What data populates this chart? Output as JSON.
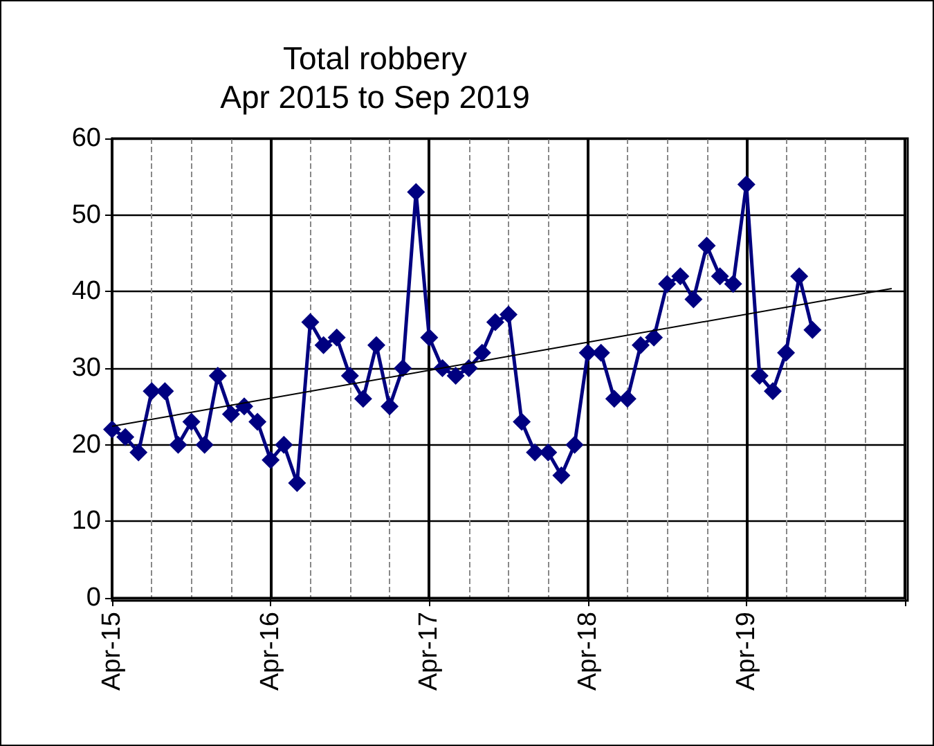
{
  "chart_data": {
    "type": "line",
    "title": "Total robbery\nApr 2015 to Sep 2019",
    "x": [
      "2015-04",
      "2015-05",
      "2015-06",
      "2015-07",
      "2015-08",
      "2015-09",
      "2015-10",
      "2015-11",
      "2015-12",
      "2016-01",
      "2016-02",
      "2016-03",
      "2016-04",
      "2016-05",
      "2016-06",
      "2016-07",
      "2016-08",
      "2016-09",
      "2016-10",
      "2016-11",
      "2016-12",
      "2017-01",
      "2017-02",
      "2017-03",
      "2017-04",
      "2017-05",
      "2017-06",
      "2017-07",
      "2017-08",
      "2017-09",
      "2017-10",
      "2017-11",
      "2017-12",
      "2018-01",
      "2018-02",
      "2018-03",
      "2018-04",
      "2018-05",
      "2018-06",
      "2018-07",
      "2018-08",
      "2018-09",
      "2018-10",
      "2018-11",
      "2018-12",
      "2019-01",
      "2019-02",
      "2019-03",
      "2019-04",
      "2019-05",
      "2019-06",
      "2019-07",
      "2019-08",
      "2019-09"
    ],
    "series": [
      {
        "color": "#000080",
        "marker": "diamond",
        "values": [
          22,
          21,
          19,
          27,
          27,
          20,
          23,
          20,
          29,
          24,
          25,
          23,
          18,
          20,
          15,
          36,
          33,
          34,
          29,
          26,
          33,
          25,
          30,
          53,
          34,
          30,
          29,
          30,
          32,
          36,
          37,
          23,
          19,
          19,
          16,
          20,
          32,
          32,
          26,
          26,
          33,
          34,
          41,
          42,
          39,
          46,
          42,
          41,
          54,
          29,
          27,
          32,
          42,
          35
        ]
      },
      {
        "color": "#000000",
        "marker": "none",
        "x": [
          "2015-04",
          "2020-03"
        ],
        "values": [
          22.4,
          40.4
        ]
      }
    ],
    "xlim": [
      "2015-04",
      "2020-04"
    ],
    "xticks": [
      {
        "value": "2015-04",
        "label": "Apr-15"
      },
      {
        "value": "2016-04",
        "label": "Apr-16"
      },
      {
        "value": "2017-04",
        "label": "Apr-17"
      },
      {
        "value": "2018-04",
        "label": "Apr-18"
      },
      {
        "value": "2019-04",
        "label": "Apr-19"
      },
      {
        "value": "2020-04",
        "label": null
      }
    ],
    "ylim": [
      0,
      60
    ],
    "yticks": [
      0,
      10,
      20,
      30,
      40,
      50,
      60
    ],
    "grid": true
  }
}
